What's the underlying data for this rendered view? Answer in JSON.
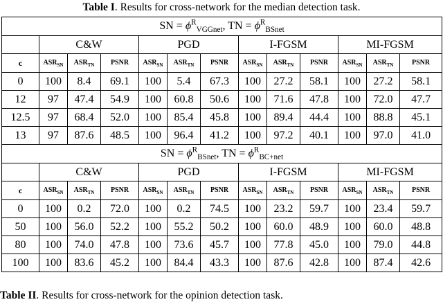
{
  "caption": {
    "label": "Table I",
    "text": ". Results for cross-network for the median detection task."
  },
  "attacks": [
    "C&W",
    "PGD",
    "I-FGSM",
    "MI-FGSM"
  ],
  "metric_headers": {
    "c": "c",
    "asr": "ASR",
    "sn": "SN",
    "tn": "TN",
    "psnr": "PSNR"
  },
  "blocks": [
    {
      "config": {
        "sn_label": "SN = ",
        "sn_phi": "ϕ",
        "sn_sup": "R",
        "sn_sub": "VGGnet",
        "sep": ", ",
        "tn_label": "TN = ",
        "tn_phi": "ϕ",
        "tn_sup": "R",
        "tn_sub": "BSnet"
      },
      "rows": [
        {
          "c": "0",
          "v": [
            "100",
            "8.4",
            "69.1",
            "100",
            "5.4",
            "67.3",
            "100",
            "27.2",
            "58.1",
            "100",
            "27.2",
            "58.1"
          ]
        },
        {
          "c": "12",
          "v": [
            "97",
            "47.4",
            "54.9",
            "100",
            "60.8",
            "50.6",
            "100",
            "71.6",
            "47.8",
            "100",
            "72.0",
            "47.7"
          ]
        },
        {
          "c": "12.5",
          "v": [
            "97",
            "68.4",
            "52.0",
            "100",
            "85.4",
            "45.8",
            "100",
            "89.4",
            "44.4",
            "100",
            "88.8",
            "45.1"
          ]
        },
        {
          "c": "13",
          "v": [
            "97",
            "87.6",
            "48.5",
            "100",
            "96.4",
            "41.2",
            "100",
            "97.2",
            "40.1",
            "100",
            "97.0",
            "41.0"
          ]
        }
      ]
    },
    {
      "config": {
        "sn_label": "SN = ",
        "sn_phi": "ϕ",
        "sn_sup": "R",
        "sn_sub": "BSnet",
        "sep": ", ",
        "tn_label": "TN = ",
        "tn_phi": "ϕ",
        "tn_sup": "R",
        "tn_sub": "BC+net"
      },
      "rows": [
        {
          "c": "0",
          "v": [
            "100",
            "0.2",
            "72.0",
            "100",
            "0.2",
            "74.5",
            "100",
            "23.2",
            "59.7",
            "100",
            "23.4",
            "59.7"
          ]
        },
        {
          "c": "50",
          "v": [
            "100",
            "56.0",
            "52.2",
            "100",
            "55.2",
            "50.2",
            "100",
            "60.0",
            "48.9",
            "100",
            "60.0",
            "48.8"
          ]
        },
        {
          "c": "80",
          "v": [
            "100",
            "74.0",
            "47.8",
            "100",
            "73.6",
            "45.7",
            "100",
            "77.8",
            "45.0",
            "100",
            "79.0",
            "44.8"
          ]
        },
        {
          "c": "100",
          "v": [
            "100",
            "83.6",
            "45.2",
            "100",
            "84.4",
            "43.3",
            "100",
            "87.6",
            "42.8",
            "100",
            "87.4",
            "42.6"
          ]
        }
      ]
    }
  ],
  "next_caption": {
    "label": "Table II",
    "text": ". Results for cross-network for the opinion detection task."
  }
}
